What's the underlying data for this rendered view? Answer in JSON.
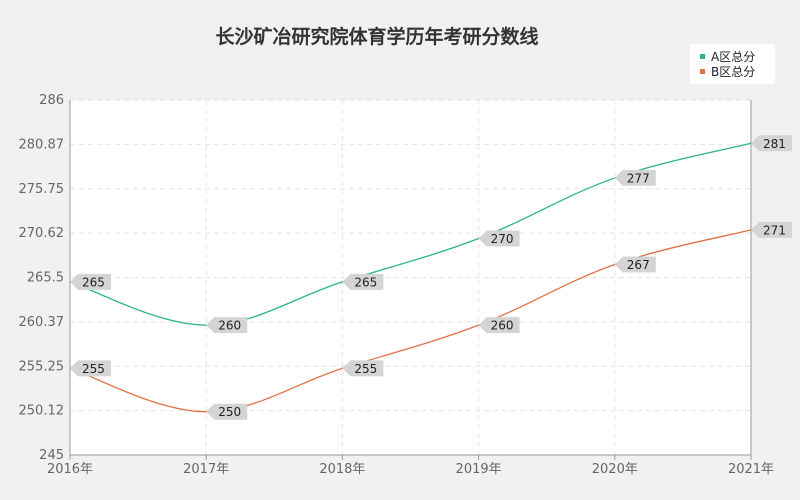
{
  "chart_data": {
    "type": "line",
    "title": "长沙矿冶研究院体育学历年考研分数线",
    "xlabel": "",
    "ylabel": "",
    "x": [
      "2016年",
      "2017年",
      "2018年",
      "2019年",
      "2020年",
      "2021年"
    ],
    "yticks": [
      "245",
      "250.12",
      "255.25",
      "260.37",
      "265.5",
      "270.62",
      "275.75",
      "280.87",
      "286"
    ],
    "ylim": [
      245,
      286
    ],
    "grid": true,
    "legend_position": "top-right",
    "series": [
      {
        "name": "A区总分",
        "color": "#2bb38a",
        "values": [
          265,
          260,
          265,
          270,
          277,
          281
        ]
      },
      {
        "name": "B区总分",
        "color": "#e07045",
        "values": [
          255,
          250,
          255,
          260,
          267,
          271
        ]
      }
    ]
  }
}
